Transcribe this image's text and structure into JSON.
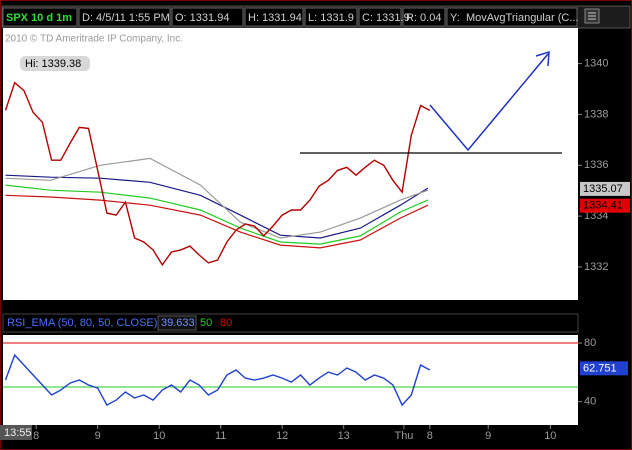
{
  "header": {
    "symbol": "SPX 10 d 1m",
    "date": "D: 4/5/11 1:55 PM",
    "open": "O: 1331.94",
    "high": "H: 1331.94",
    "low": "L: 1331.9",
    "close": "C: 1331.9",
    "range": "R: 0.04",
    "y": "Y:",
    "study": "MovAvgTriangular (C..."
  },
  "time_label": "13:55",
  "chart_data": [
    {
      "type": "line",
      "copyright": "2010 © TD Ameritrade IP Company, Inc.",
      "high_label": "Hi: 1339.38",
      "xlim": [
        -0.54,
        8.81
      ],
      "ylim": [
        1330.7,
        1341.4
      ],
      "yticks": [
        1332,
        1334,
        1336,
        1338,
        1340
      ],
      "x": [
        -0.5,
        -0.35,
        -0.2,
        -0.05,
        0.1,
        0.25,
        0.4,
        0.55,
        0.7,
        0.85,
        1.0,
        1.15,
        1.3,
        1.45,
        1.6,
        1.75,
        1.9,
        2.05,
        2.2,
        2.35,
        2.5,
        2.65,
        2.8,
        2.95,
        3.1,
        3.25,
        3.4,
        3.55,
        3.7,
        3.85,
        4.0,
        4.15,
        4.3,
        4.45,
        4.6,
        4.75,
        4.9,
        5.05,
        5.2,
        5.35,
        5.5,
        5.65,
        5.8,
        5.95,
        6.1,
        6.25,
        6.4
      ],
      "series": [
        {
          "color": "#b00000",
          "values": [
            1338.16,
            1339.25,
            1338.94,
            1338.08,
            1337.69,
            1336.2,
            1336.2,
            1336.86,
            1337.49,
            1337.45,
            1335.8,
            1334.12,
            1334.04,
            1334.55,
            1333.14,
            1332.98,
            1332.67,
            1332.08,
            1332.59,
            1332.67,
            1332.82,
            1332.47,
            1332.16,
            1332.27,
            1332.98,
            1333.45,
            1333.69,
            1333.61,
            1333.22,
            1333.61,
            1334.04,
            1334.24,
            1334.24,
            1334.63,
            1335.18,
            1335.41,
            1335.8,
            1335.92,
            1335.61,
            1335.92,
            1336.2,
            1336.0,
            1335.41,
            1334.94,
            1337.18,
            1338.35,
            1338.16
          ]
        },
        {
          "color": "#9a9a9a",
          "x": [
            -0.5,
            0.23,
            1.04,
            1.85,
            2.67,
            3.32,
            3.97,
            4.62,
            5.27,
            5.92,
            6.37
          ],
          "values": [
            1335.49,
            1335.41,
            1336.0,
            1336.27,
            1335.22,
            1333.76,
            1333.14,
            1333.37,
            1333.92,
            1334.63,
            1335.02
          ]
        },
        {
          "color": "#1a1a8a",
          "x": [
            -0.5,
            0.23,
            1.04,
            1.85,
            2.67,
            3.32,
            3.97,
            4.62,
            5.27,
            5.92,
            6.37
          ],
          "values": [
            1335.61,
            1335.53,
            1335.49,
            1335.33,
            1334.82,
            1334.04,
            1333.25,
            1333.14,
            1333.53,
            1334.43,
            1335.1
          ]
        },
        {
          "color": "#22cc22",
          "x": [
            -0.5,
            0.23,
            1.04,
            1.85,
            2.67,
            3.32,
            3.97,
            4.62,
            5.27,
            5.92,
            6.37
          ],
          "values": [
            1335.22,
            1335.02,
            1334.94,
            1334.71,
            1334.24,
            1333.53,
            1332.98,
            1332.9,
            1333.22,
            1334.16,
            1334.63
          ]
        },
        {
          "color": "#cc1111",
          "x": [
            -0.5,
            0.23,
            1.04,
            1.85,
            2.67,
            3.32,
            3.97,
            4.62,
            5.27,
            5.92,
            6.37
          ],
          "values": [
            1334.82,
            1334.75,
            1334.63,
            1334.43,
            1334.04,
            1333.37,
            1332.86,
            1332.75,
            1333.06,
            1333.92,
            1334.43
          ]
        }
      ],
      "price_tags": [
        {
          "value": 1335.07,
          "color": "#c8c8c8"
        },
        {
          "value": 1334.41,
          "color": "#e00000"
        }
      ]
    },
    {
      "type": "line",
      "title": "RSI_EMA (50, 80, 50, CLOSE)",
      "title_value": 39.633,
      "levels": [
        {
          "value": 50,
          "color": "#22cc22"
        },
        {
          "value": 80,
          "color": "#dd0000"
        }
      ],
      "xlim": [
        -0.54,
        8.81
      ],
      "ylim": [
        24.1,
        85.5
      ],
      "yticks": [
        40,
        80
      ],
      "xticks": [
        {
          "value": 0,
          "label": "8"
        },
        {
          "value": 1,
          "label": "9"
        },
        {
          "value": 2,
          "label": "10"
        },
        {
          "value": 3,
          "label": "11"
        },
        {
          "value": 4,
          "label": "12"
        },
        {
          "value": 5,
          "label": "13"
        },
        {
          "value": 5.98,
          "label": "Thu"
        },
        {
          "value": 6.4,
          "label": "8"
        },
        {
          "value": 7.35,
          "label": "9"
        },
        {
          "value": 8.36,
          "label": "10"
        }
      ],
      "x": [
        -0.5,
        -0.35,
        -0.2,
        -0.05,
        0.1,
        0.25,
        0.4,
        0.55,
        0.7,
        0.85,
        1.0,
        1.15,
        1.3,
        1.45,
        1.6,
        1.75,
        1.9,
        2.05,
        2.2,
        2.35,
        2.5,
        2.65,
        2.8,
        2.95,
        3.1,
        3.25,
        3.4,
        3.55,
        3.7,
        3.85,
        4.0,
        4.15,
        4.3,
        4.45,
        4.6,
        4.75,
        4.9,
        5.05,
        5.2,
        5.35,
        5.5,
        5.65,
        5.8,
        5.95,
        6.1,
        6.25,
        6.4
      ],
      "series": [
        {
          "color": "#2040d0",
          "values": [
            54.8,
            71.8,
            65.0,
            58.2,
            51.4,
            44.6,
            48.0,
            52.7,
            54.8,
            51.4,
            49.3,
            37.7,
            41.1,
            46.6,
            42.5,
            44.6,
            41.1,
            48.0,
            51.4,
            46.6,
            54.8,
            51.4,
            44.6,
            48.0,
            58.2,
            61.6,
            56.1,
            54.8,
            56.1,
            58.2,
            56.1,
            53.4,
            58.2,
            51.4,
            56.1,
            60.2,
            58.2,
            63.0,
            60.2,
            54.8,
            58.2,
            56.1,
            51.4,
            37.7,
            44.6,
            65.0,
            61.6
          ]
        }
      ],
      "last_tag": 62.751
    }
  ]
}
